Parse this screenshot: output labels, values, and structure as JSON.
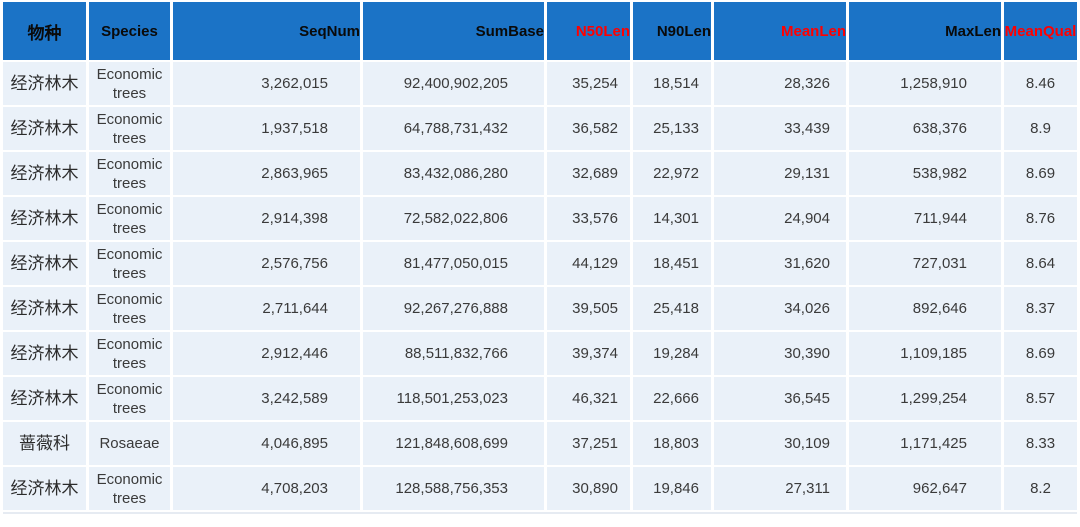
{
  "table": {
    "columns": [
      {
        "key": "species-cn",
        "label": "物种",
        "highlight": false
      },
      {
        "key": "species-en",
        "label": "Species",
        "highlight": false
      },
      {
        "key": "seqnum",
        "label": "SeqNum",
        "highlight": false
      },
      {
        "key": "sumbase",
        "label": "SumBase",
        "highlight": false
      },
      {
        "key": "n50len",
        "label": "N50Len",
        "highlight": true
      },
      {
        "key": "n90len",
        "label": "N90Len",
        "highlight": false
      },
      {
        "key": "meanlen",
        "label": "MeanLen",
        "highlight": true
      },
      {
        "key": "maxlen",
        "label": "MaxLen",
        "highlight": false
      },
      {
        "key": "meanqual",
        "label": "MeanQual",
        "highlight": true
      }
    ],
    "rows": [
      [
        "经济林木",
        "Economic trees",
        "3,262,015",
        "92,400,902,205",
        "35,254",
        "18,514",
        "28,326",
        "1,258,910",
        "8.46"
      ],
      [
        "经济林木",
        "Economic trees",
        "1,937,518",
        "64,788,731,432",
        "36,582",
        "25,133",
        "33,439",
        "638,376",
        "8.9"
      ],
      [
        "经济林木",
        "Economic trees",
        "2,863,965",
        "83,432,086,280",
        "32,689",
        "22,972",
        "29,131",
        "538,982",
        "8.69"
      ],
      [
        "经济林木",
        "Economic trees",
        "2,914,398",
        "72,582,022,806",
        "33,576",
        "14,301",
        "24,904",
        "711,944",
        "8.76"
      ],
      [
        "经济林木",
        "Economic trees",
        "2,576,756",
        "81,477,050,015",
        "44,129",
        "18,451",
        "31,620",
        "727,031",
        "8.64"
      ],
      [
        "经济林木",
        "Economic trees",
        "2,711,644",
        "92,267,276,888",
        "39,505",
        "25,418",
        "34,026",
        "892,646",
        "8.37"
      ],
      [
        "经济林木",
        "Economic trees",
        "2,912,446",
        "88,511,832,766",
        "39,374",
        "19,284",
        "30,390",
        "1,109,185",
        "8.69"
      ],
      [
        "经济林木",
        "Economic trees",
        "3,242,589",
        "118,501,253,023",
        "46,321",
        "22,666",
        "36,545",
        "1,299,254",
        "8.57"
      ],
      [
        "蔷薇科",
        "Rosaeae",
        "4,046,895",
        "121,848,608,699",
        "37,251",
        "18,803",
        "30,109",
        "1,171,425",
        "8.33"
      ],
      [
        "经济林木",
        "Economic trees",
        "4,708,203",
        "128,588,756,353",
        "30,890",
        "19,846",
        "27,311",
        "962,647",
        "8.2"
      ]
    ],
    "colors": {
      "header_bg": "#1b73c6",
      "header_text": "#0a0a0a",
      "header_highlight_text": "#ff0000",
      "row_bg": "#eaf1f9",
      "cell_text": "#3a3a3a",
      "divider": "#ffffff"
    }
  }
}
